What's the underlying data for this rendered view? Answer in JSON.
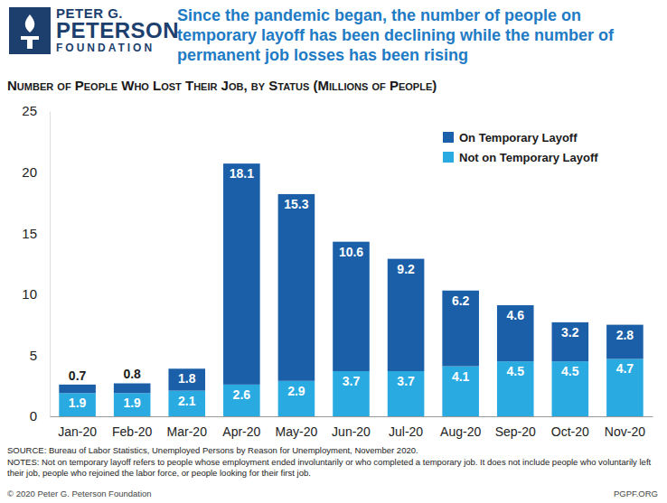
{
  "chart_data": {
    "type": "bar",
    "title": "Since the pandemic began, the number of people on temporary layoff has been declining while the number of permanent job losses has been rising",
    "subtitle": "Number of People Who Lost Their Job, by Status (Millions of People)",
    "logo": [
      "PETER G.",
      "PETERSON",
      "FOUNDATION"
    ],
    "source": "SOURCE: Bureau of Labor Statistics, Unemployed Persons by Reason for Unemployment, November 2020.",
    "notes": "NOTES: Not on temporary layoff refers to people whose employment ended involuntarily or who completed a temporary job. It does not include people who voluntarily left their job, people who rejoined the labor force, or people looking for their first job.",
    "copyright": "© 2020 Peter G. Peterson Foundation",
    "site": "PGPF.ORG",
    "categories": [
      "Jan-20",
      "Feb-20",
      "Mar-20",
      "Apr-20",
      "May-20",
      "Jun-20",
      "Jul-20",
      "Aug-20",
      "Sep-20",
      "Oct-20",
      "Nov-20"
    ],
    "series": [
      {
        "name": "Not on Temporary Layoff",
        "color": "#29abe2",
        "values": [
          1.9,
          1.9,
          2.1,
          2.6,
          2.9,
          3.7,
          3.7,
          4.1,
          4.5,
          4.5,
          4.7
        ]
      },
      {
        "name": "On Temporary Layoff",
        "color": "#1a5fa8",
        "values": [
          0.7,
          0.8,
          1.8,
          18.1,
          15.3,
          10.6,
          9.2,
          6.2,
          4.6,
          3.2,
          2.8
        ]
      }
    ],
    "stacked": true,
    "data_labels": true,
    "legend": "top-right",
    "grid": false,
    "ylim": [
      0,
      25
    ],
    "yticks": [
      0,
      5,
      10,
      15,
      20,
      25
    ]
  }
}
